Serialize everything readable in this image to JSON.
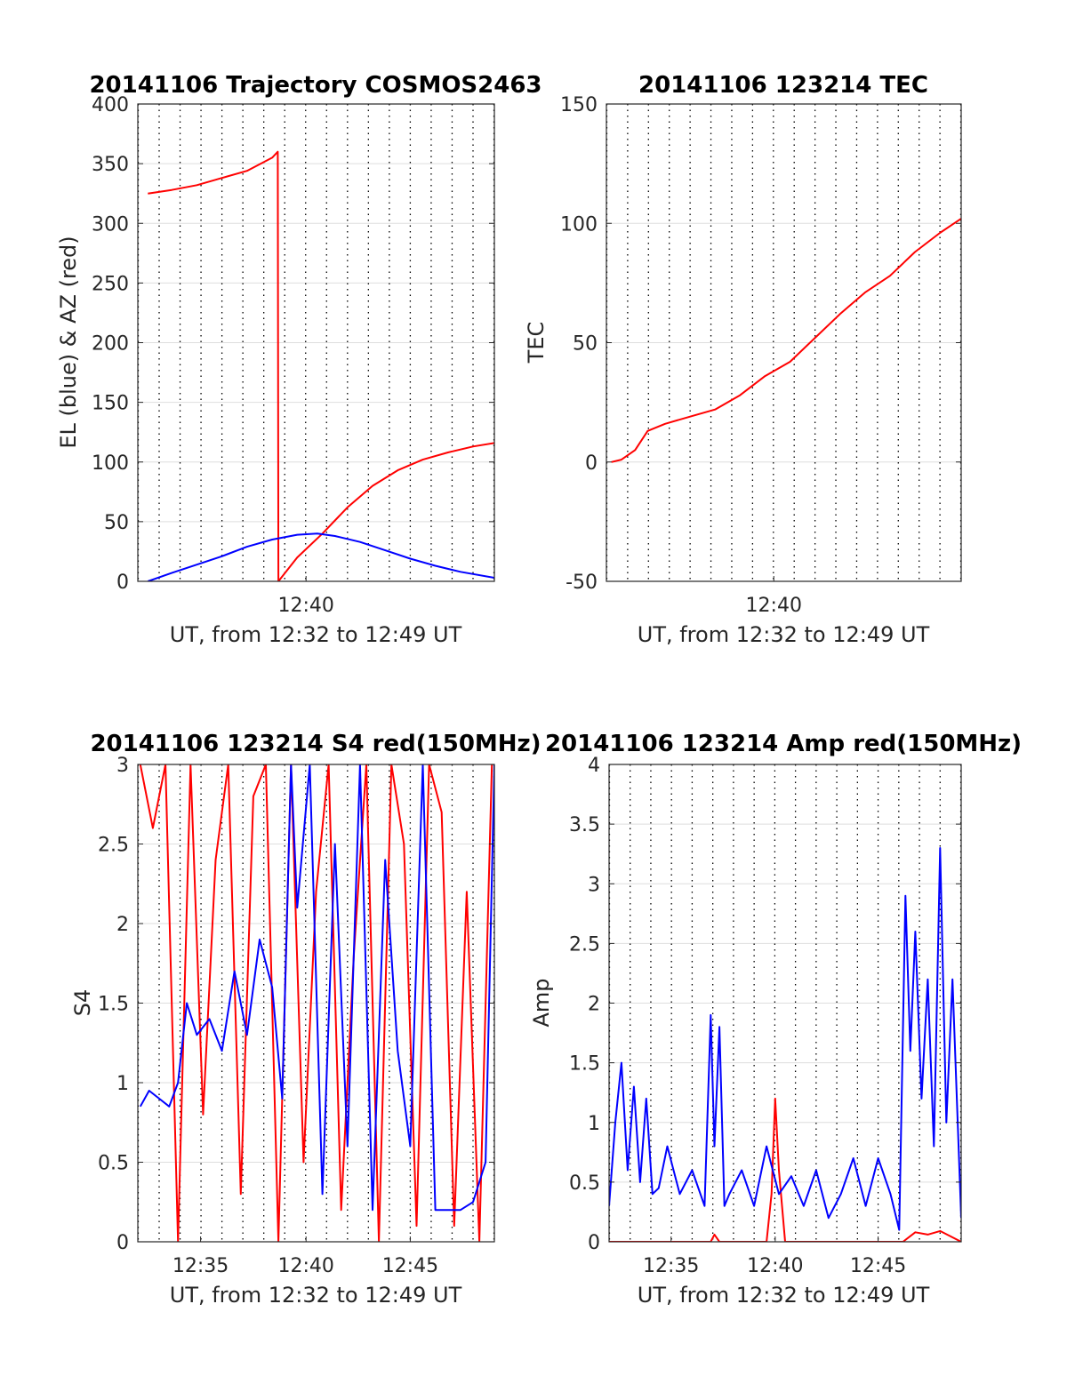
{
  "colors": {
    "red": "#ff0000",
    "blue": "#0000ff",
    "grid": "#dedede",
    "axis": "#262626"
  },
  "chart_data": [
    {
      "id": "trajectory",
      "type": "line",
      "title": "20141106 Trajectory COSMOS2463",
      "xlabel": "UT, from 12:32 to 12:49 UT",
      "ylabel": "EL (blue) & AZ (red)",
      "xlim": [
        12.533,
        12.817
      ],
      "ylim": [
        0,
        400
      ],
      "yticks": [
        0,
        50,
        100,
        150,
        200,
        250,
        300,
        350,
        400
      ],
      "ytick_labels": [
        "0",
        "50",
        "100",
        "150",
        "200",
        "250",
        "300",
        "350",
        "400"
      ],
      "xticks": [
        12.667
      ],
      "xtick_labels": [
        "12:40"
      ],
      "minute_gridlines": true,
      "series": [
        {
          "name": "AZ (red)",
          "color": "red",
          "x": [
            12.541,
            12.56,
            12.58,
            12.6,
            12.62,
            12.64,
            12.6445,
            12.645,
            12.66,
            12.68,
            12.7,
            12.72,
            12.74,
            12.76,
            12.78,
            12.8,
            12.817
          ],
          "y": [
            325,
            328,
            332,
            338,
            344,
            355,
            360,
            0,
            20,
            40,
            62,
            80,
            93,
            102,
            108,
            113,
            116
          ]
        },
        {
          "name": "EL (blue)",
          "color": "blue",
          "x": [
            12.541,
            12.56,
            12.58,
            12.6,
            12.62,
            12.64,
            12.66,
            12.676,
            12.69,
            12.71,
            12.73,
            12.75,
            12.77,
            12.79,
            12.817
          ],
          "y": [
            0,
            7,
            14,
            21,
            29,
            35,
            39,
            40,
            38,
            33,
            26,
            19,
            13,
            8,
            3
          ]
        }
      ]
    },
    {
      "id": "tec",
      "type": "line",
      "title": "20141106 123214 TEC",
      "xlabel": "UT, from 12:32 to 12:49 UT",
      "ylabel": "TEC",
      "xlim": [
        12.533,
        12.817
      ],
      "ylim": [
        -50,
        150
      ],
      "yticks": [
        -50,
        0,
        50,
        100,
        150
      ],
      "ytick_labels": [
        "-50",
        "0",
        "50",
        "100",
        "150"
      ],
      "xticks": [
        12.667
      ],
      "xtick_labels": [
        "12:40"
      ],
      "minute_gridlines": true,
      "series": [
        {
          "name": "TEC",
          "color": "red",
          "x": [
            12.537,
            12.545,
            12.556,
            12.566,
            12.58,
            12.6,
            12.62,
            12.64,
            12.66,
            12.68,
            12.7,
            12.72,
            12.74,
            12.76,
            12.78,
            12.8,
            12.817
          ],
          "y": [
            0,
            1,
            5,
            13,
            16,
            19,
            22,
            28,
            36,
            42,
            52,
            62,
            71,
            78,
            88,
            96,
            102
          ]
        }
      ]
    },
    {
      "id": "s4",
      "type": "line",
      "title": "20141106 123214 S4 red(150MHz)",
      "xlabel": "UT, from 12:32 to 12:49 UT",
      "ylabel": "S4",
      "xlim": [
        12.533,
        12.817
      ],
      "ylim": [
        0,
        3
      ],
      "yticks": [
        0,
        0.5,
        1,
        1.5,
        2,
        2.5,
        3
      ],
      "ytick_labels": [
        "0",
        "0.5",
        "1",
        "1.5",
        "2",
        "2.5",
        "3"
      ],
      "xticks": [
        12.583,
        12.667,
        12.75
      ],
      "xtick_labels": [
        "12:35",
        "12:40",
        "12:45"
      ],
      "minute_gridlines": true,
      "series": [
        {
          "name": "S4 red (150MHz)",
          "color": "red",
          "x": [
            12.535,
            12.545,
            12.555,
            12.565,
            12.575,
            12.585,
            12.595,
            12.605,
            12.615,
            12.625,
            12.635,
            12.645,
            12.655,
            12.665,
            12.675,
            12.685,
            12.695,
            12.705,
            12.715,
            12.725,
            12.735,
            12.745,
            12.755,
            12.765,
            12.775,
            12.785,
            12.795,
            12.805,
            12.815
          ],
          "y": [
            3,
            2.6,
            3,
            0,
            3,
            0.8,
            2.4,
            3,
            0.3,
            2.8,
            3,
            0,
            3,
            0.5,
            2.2,
            3,
            0.2,
            1.8,
            3,
            0,
            3,
            2.5,
            0.1,
            3,
            2.7,
            0.1,
            2.2,
            0,
            3
          ]
        },
        {
          "name": "S4 blue",
          "color": "blue",
          "x": [
            12.535,
            12.542,
            12.55,
            12.558,
            12.565,
            12.572,
            12.58,
            12.59,
            12.6,
            12.61,
            12.62,
            12.63,
            12.64,
            12.648,
            12.655,
            12.66,
            12.67,
            12.68,
            12.69,
            12.7,
            12.71,
            12.72,
            12.73,
            12.74,
            12.75,
            12.76,
            12.77,
            12.78,
            12.79,
            12.8,
            12.81,
            12.817
          ],
          "y": [
            0.85,
            0.95,
            0.9,
            0.85,
            1.0,
            1.5,
            1.3,
            1.4,
            1.2,
            1.7,
            1.3,
            1.9,
            1.6,
            0.9,
            3,
            2.1,
            3,
            0.3,
            2.5,
            0.6,
            3,
            0.2,
            2.4,
            1.2,
            0.6,
            3,
            0.2,
            0.2,
            0.2,
            0.25,
            0.5,
            3
          ]
        }
      ]
    },
    {
      "id": "amp",
      "type": "line",
      "title": "20141106 123214 Amp red(150MHz)",
      "xlabel": "UT, from 12:32 to 12:49 UT",
      "ylabel": "Amp",
      "xlim": [
        12.533,
        12.817
      ],
      "ylim": [
        0,
        4
      ],
      "yticks": [
        0,
        0.5,
        1,
        1.5,
        2,
        2.5,
        3,
        3.5,
        4
      ],
      "ytick_labels": [
        "0",
        "0.5",
        "1",
        "1.5",
        "2",
        "2.5",
        "3",
        "3.5",
        "4"
      ],
      "xticks": [
        12.583,
        12.667,
        12.75
      ],
      "xtick_labels": [
        "12:35",
        "12:40",
        "12:45"
      ],
      "minute_gridlines": true,
      "series": [
        {
          "name": "Amp red (150MHz)",
          "color": "red",
          "x": [
            12.533,
            12.615,
            12.618,
            12.622,
            12.66,
            12.664,
            12.667,
            12.67,
            12.675,
            12.77,
            12.78,
            12.79,
            12.8,
            12.817
          ],
          "y": [
            0,
            0,
            0.06,
            0,
            0,
            0.4,
            1.2,
            0.6,
            0,
            0,
            0.08,
            0.06,
            0.09,
            0
          ]
        },
        {
          "name": "Amp blue",
          "color": "blue",
          "x": [
            12.533,
            12.538,
            12.543,
            12.548,
            12.553,
            12.558,
            12.563,
            12.568,
            12.573,
            12.58,
            12.59,
            12.6,
            12.61,
            12.615,
            12.618,
            12.622,
            12.626,
            12.63,
            12.64,
            12.65,
            12.66,
            12.67,
            12.68,
            12.69,
            12.7,
            12.71,
            12.72,
            12.73,
            12.74,
            12.75,
            12.76,
            12.767,
            12.772,
            12.776,
            12.78,
            12.785,
            12.79,
            12.795,
            12.8,
            12.805,
            12.81,
            12.817
          ],
          "y": [
            0.3,
            1.0,
            1.5,
            0.6,
            1.3,
            0.5,
            1.2,
            0.4,
            0.45,
            0.8,
            0.4,
            0.6,
            0.3,
            1.9,
            0.8,
            1.8,
            0.3,
            0.4,
            0.6,
            0.3,
            0.8,
            0.4,
            0.55,
            0.3,
            0.6,
            0.2,
            0.4,
            0.7,
            0.3,
            0.7,
            0.4,
            0.1,
            2.9,
            1.6,
            2.6,
            1.2,
            2.2,
            0.8,
            3.3,
            1.0,
            2.2,
            0.2
          ]
        }
      ]
    }
  ]
}
